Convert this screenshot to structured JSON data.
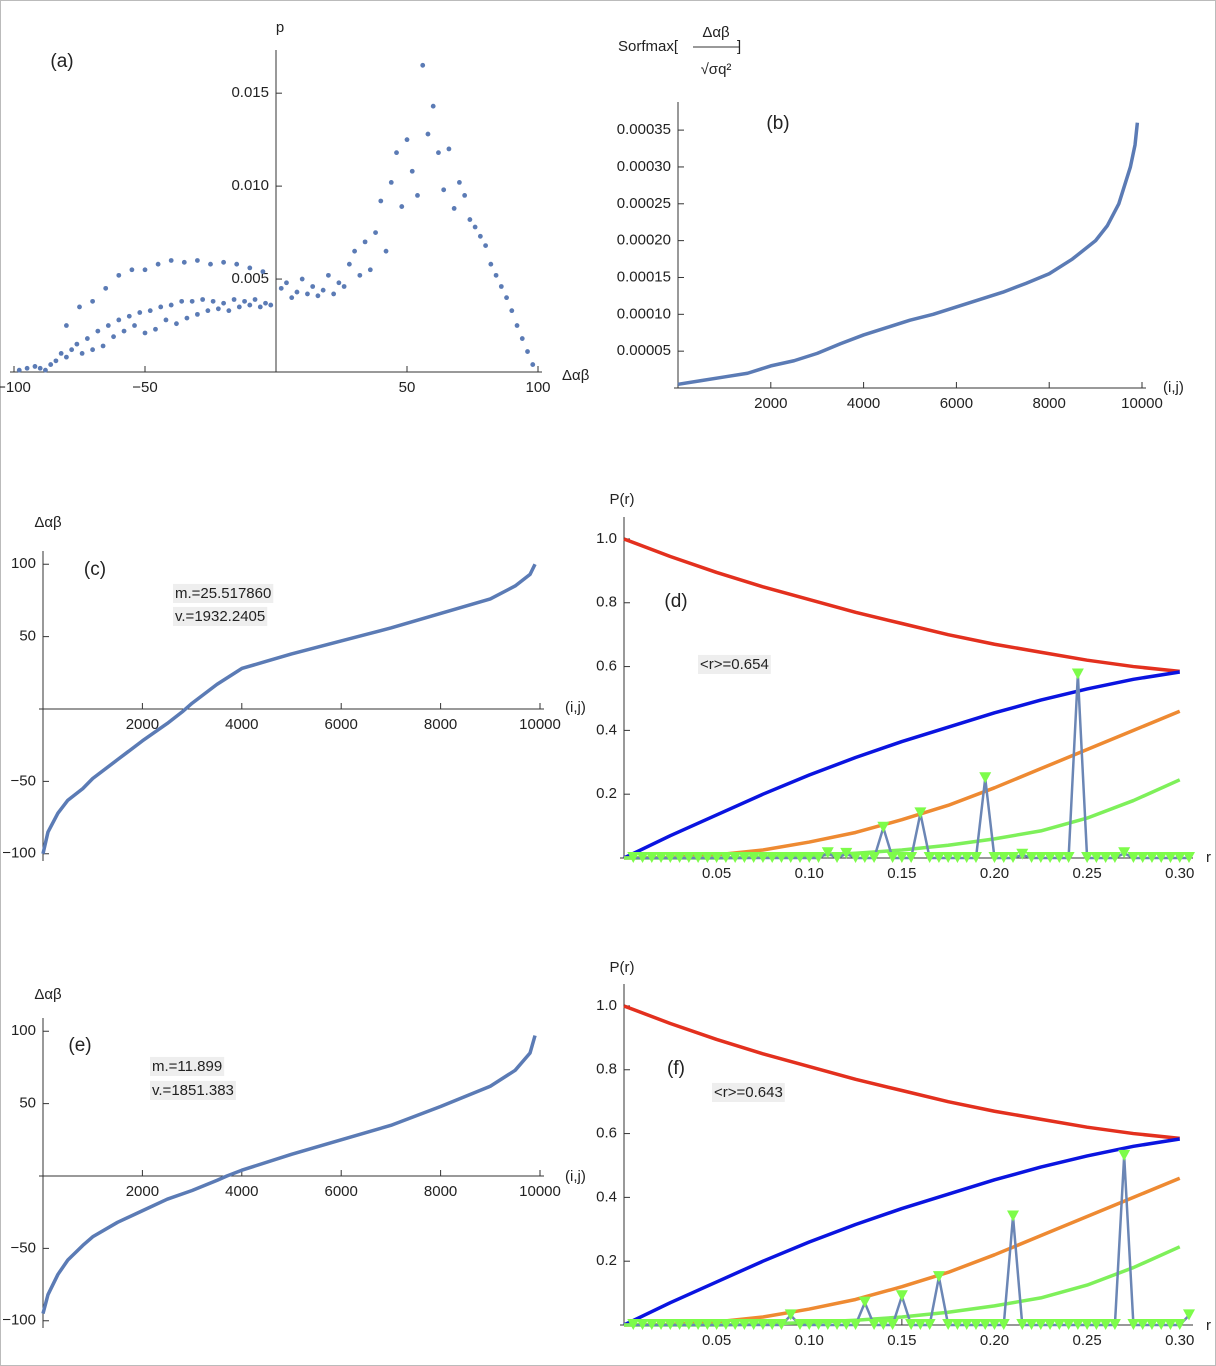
{
  "chart_data": [
    {
      "type": "scatter",
      "title": "(a)",
      "x_label": "Δαβ",
      "y_label": "p",
      "color": "#5b7bb5",
      "xlim": [
        -100,
        100
      ],
      "ylim": [
        0,
        0.017
      ],
      "xticks": [
        {
          "value": -100,
          "label": "−100"
        },
        {
          "value": -50,
          "label": "−50"
        },
        50,
        100
      ],
      "yticks": [
        0.005,
        {
          "value": 0.01,
          "label": "0.010"
        },
        0.015
      ],
      "x": [
        -98,
        -95,
        -92,
        -90,
        -88,
        -86,
        -84,
        -82,
        -80,
        -78,
        -76,
        -74,
        -72,
        -70,
        -68,
        -66,
        -64,
        -62,
        -60,
        -58,
        -56,
        -54,
        -52,
        -50,
        -48,
        -46,
        -44,
        -42,
        -40,
        -38,
        -36,
        -34,
        -32,
        -30,
        -28,
        -26,
        -24,
        -22,
        -20,
        -18,
        -16,
        -14,
        -12,
        -10,
        -8,
        -6,
        -4,
        -2,
        -80,
        -75,
        -70,
        -65,
        -60,
        -55,
        -50,
        -45,
        -40,
        -35,
        -30,
        -25,
        -20,
        -15,
        -10,
        -5,
        2,
        4,
        6,
        8,
        10,
        12,
        14,
        16,
        18,
        20,
        22,
        24,
        26,
        28,
        30,
        32,
        34,
        36,
        38,
        40,
        42,
        44,
        46,
        48,
        50,
        52,
        54,
        56,
        58,
        60,
        62,
        64,
        66,
        68,
        70,
        72,
        74,
        76,
        78,
        80,
        82,
        84,
        86,
        88,
        90,
        92,
        94,
        96,
        98
      ],
      "values": [
        0.0001,
        0.0002,
        0.0003,
        0.0002,
        0.0001,
        0.0004,
        0.0006,
        0.001,
        0.0008,
        0.0012,
        0.0015,
        0.001,
        0.0018,
        0.0012,
        0.0022,
        0.0014,
        0.0025,
        0.0019,
        0.0028,
        0.0022,
        0.003,
        0.0025,
        0.0032,
        0.0021,
        0.0033,
        0.0023,
        0.0035,
        0.0028,
        0.0036,
        0.0026,
        0.0038,
        0.0029,
        0.0038,
        0.0031,
        0.0039,
        0.0033,
        0.0038,
        0.0034,
        0.0037,
        0.0033,
        0.0039,
        0.0035,
        0.0038,
        0.0036,
        0.0039,
        0.0035,
        0.0037,
        0.0036,
        0.0025,
        0.0035,
        0.0038,
        0.0045,
        0.0052,
        0.0055,
        0.0055,
        0.0058,
        0.006,
        0.0059,
        0.006,
        0.0058,
        0.0059,
        0.0058,
        0.0056,
        0.0054,
        0.0045,
        0.0048,
        0.004,
        0.0043,
        0.005,
        0.0042,
        0.0046,
        0.0041,
        0.0044,
        0.0052,
        0.0042,
        0.0048,
        0.0046,
        0.0058,
        0.0065,
        0.0052,
        0.007,
        0.0055,
        0.0075,
        0.0092,
        0.0065,
        0.0102,
        0.0118,
        0.0089,
        0.0125,
        0.0108,
        0.0095,
        0.0165,
        0.0128,
        0.0143,
        0.0118,
        0.0098,
        0.012,
        0.0088,
        0.0102,
        0.0095,
        0.0082,
        0.0078,
        0.0073,
        0.0068,
        0.0058,
        0.0052,
        0.0046,
        0.004,
        0.0033,
        0.0025,
        0.0018,
        0.0011,
        0.0004
      ]
    },
    {
      "type": "line",
      "title": "(b)",
      "x_label": "(i,j)",
      "y_label": [
        "Sorfmax[",
        "Δαβ",
        "√σq²",
        "]"
      ],
      "color": "#5b7bb5",
      "xlim": [
        0,
        10000
      ],
      "ylim": [
        0,
        0.00038
      ],
      "xticks": [
        2000,
        4000,
        6000,
        8000,
        10000
      ],
      "yticks": [
        {
          "value": 5e-05,
          "label": "0.00005"
        },
        {
          "value": 0.0001,
          "label": "0.00010"
        },
        {
          "value": 0.00015,
          "label": "0.00015"
        },
        {
          "value": 0.0002,
          "label": "0.00020"
        },
        {
          "value": 0.00025,
          "label": "0.00025"
        },
        {
          "value": 0.0003,
          "label": "0.00030"
        },
        {
          "value": 0.00035,
          "label": "0.00035"
        }
      ],
      "x": [
        0,
        500,
        1000,
        1500,
        2000,
        2500,
        3000,
        3500,
        4000,
        4500,
        5000,
        5500,
        6000,
        6500,
        7000,
        7500,
        8000,
        8500,
        9000,
        9250,
        9500,
        9650,
        9750,
        9850,
        9900
      ],
      "values": [
        5e-06,
        1e-05,
        1.5e-05,
        2e-05,
        3e-05,
        3.7e-05,
        4.7e-05,
        6e-05,
        7.2e-05,
        8.2e-05,
        9.2e-05,
        0.0001,
        0.00011,
        0.00012,
        0.00013,
        0.000142,
        0.000155,
        0.000175,
        0.0002,
        0.00022,
        0.00025,
        0.00028,
        0.0003,
        0.00033,
        0.00036
      ]
    },
    {
      "type": "line",
      "title": "(c)",
      "x_label": "(i,j)",
      "y_label": "Δαβ",
      "color": "#5b7bb5",
      "annotations": [
        "m.=25.517860",
        "v.=1932.2405"
      ],
      "xlim": [
        0,
        10000
      ],
      "ylim": [
        -105,
        105
      ],
      "xticks": [
        2000,
        4000,
        6000,
        8000,
        10000
      ],
      "yticks": [
        {
          "value": -100,
          "label": "−100"
        },
        {
          "value": -50,
          "label": "−50"
        },
        50,
        100
      ],
      "x": [
        0,
        100,
        300,
        500,
        800,
        1000,
        1500,
        2000,
        2500,
        2800,
        3000,
        3500,
        4000,
        4500,
        5000,
        6000,
        7000,
        8000,
        9000,
        9500,
        9800,
        9900
      ],
      "values": [
        -100,
        -85,
        -72,
        -63,
        -55,
        -48,
        -35,
        -22,
        -10,
        -2,
        4,
        17,
        28,
        33,
        38,
        47,
        56,
        66,
        76,
        85,
        93,
        100
      ]
    },
    {
      "type": "line",
      "title": "(d)",
      "x_label": "r",
      "y_label": "P(r)",
      "annotations": [
        "<r>=0.654"
      ],
      "xlim": [
        0,
        0.305
      ],
      "ylim": [
        0,
        1.05
      ],
      "xticks": [
        0.05,
        {
          "value": 0.1,
          "label": "0.10"
        },
        0.15,
        {
          "value": 0.2,
          "label": "0.20"
        },
        0.25,
        {
          "value": 0.3,
          "label": "0.30"
        }
      ],
      "yticks": [
        0.2,
        0.4,
        0.6,
        0.8,
        {
          "value": 1,
          "label": "1.0"
        }
      ],
      "series": [
        {
          "color": "#e3301e",
          "x": [
            0,
            0.025,
            0.05,
            0.075,
            0.1,
            0.125,
            0.15,
            0.175,
            0.2,
            0.225,
            0.25,
            0.275,
            0.3
          ],
          "values": [
            1,
            0.945,
            0.895,
            0.85,
            0.81,
            0.77,
            0.735,
            0.7,
            0.67,
            0.645,
            0.62,
            0.6,
            0.585
          ]
        },
        {
          "color": "#0a14e0",
          "x": [
            0,
            0.025,
            0.05,
            0.075,
            0.1,
            0.125,
            0.15,
            0.175,
            0.2,
            0.225,
            0.25,
            0.275,
            0.3
          ],
          "values": [
            0,
            0.07,
            0.135,
            0.2,
            0.26,
            0.315,
            0.365,
            0.41,
            0.455,
            0.495,
            0.53,
            0.56,
            0.583
          ]
        },
        {
          "color": "#ee8a32",
          "x": [
            0,
            0.025,
            0.05,
            0.075,
            0.1,
            0.125,
            0.15,
            0.175,
            0.2,
            0.225,
            0.25,
            0.275,
            0.3
          ],
          "values": [
            0,
            0.002,
            0.01,
            0.025,
            0.05,
            0.08,
            0.12,
            0.165,
            0.22,
            0.28,
            0.34,
            0.4,
            0.46
          ]
        },
        {
          "color": "#7ef05a",
          "x": [
            0,
            0.025,
            0.05,
            0.075,
            0.1,
            0.125,
            0.15,
            0.175,
            0.2,
            0.225,
            0.25,
            0.275,
            0.3
          ],
          "values": [
            0,
            0,
            0,
            0.003,
            0.008,
            0.015,
            0.025,
            0.04,
            0.06,
            0.085,
            0.125,
            0.18,
            0.245
          ]
        },
        {
          "color": "#6b86b5",
          "marker": "triangle",
          "marker_color": "#7dfc4a",
          "x": [
            0.005,
            0.01,
            0.015,
            0.02,
            0.025,
            0.03,
            0.035,
            0.04,
            0.045,
            0.05,
            0.055,
            0.06,
            0.065,
            0.07,
            0.075,
            0.08,
            0.085,
            0.09,
            0.095,
            0.1,
            0.105,
            0.11,
            0.115,
            0.12,
            0.125,
            0.13,
            0.135,
            0.14,
            0.145,
            0.15,
            0.155,
            0.16,
            0.165,
            0.17,
            0.175,
            0.18,
            0.185,
            0.19,
            0.195,
            0.2,
            0.205,
            0.21,
            0.215,
            0.22,
            0.225,
            0.23,
            0.235,
            0.24,
            0.245,
            0.25,
            0.255,
            0.26,
            0.265,
            0.27,
            0.275,
            0.28,
            0.285,
            0.29,
            0.295,
            0.3,
            0.305
          ],
          "values": [
            0,
            0,
            0,
            0,
            0,
            0,
            0,
            0,
            0,
            0,
            0,
            0,
            0,
            0,
            0,
            0,
            0,
            0,
            0,
            0,
            0,
            0.015,
            0,
            0.013,
            0,
            0,
            0,
            0.095,
            0,
            0,
            0,
            0.14,
            0,
            0,
            0,
            0,
            0,
            0,
            0.25,
            0,
            0,
            0,
            0.01,
            0,
            0,
            0,
            0,
            0,
            0.575,
            0,
            0,
            0,
            0,
            0.015,
            0,
            0,
            0,
            0,
            0,
            0,
            0
          ]
        }
      ]
    },
    {
      "type": "line",
      "title": "(e)",
      "x_label": "(i,j)",
      "y_label": "Δαβ",
      "color": "#5b7bb5",
      "annotations": [
        "m.=11.899",
        "v.=1851.383"
      ],
      "xlim": [
        0,
        10000
      ],
      "ylim": [
        -105,
        105
      ],
      "xticks": [
        2000,
        4000,
        6000,
        8000,
        10000
      ],
      "yticks": [
        {
          "value": -100,
          "label": "−100"
        },
        {
          "value": -50,
          "label": "−50"
        },
        50,
        100
      ],
      "x": [
        0,
        100,
        300,
        500,
        800,
        1000,
        1500,
        2000,
        2500,
        3000,
        3500,
        3700,
        4000,
        5000,
        6000,
        7000,
        8000,
        9000,
        9500,
        9800,
        9900
      ],
      "values": [
        -95,
        -82,
        -68,
        -58,
        -48,
        -42,
        -32,
        -24,
        -16,
        -10,
        -3,
        0,
        4,
        15,
        25,
        35,
        48,
        62,
        73,
        85,
        97
      ]
    },
    {
      "type": "line",
      "title": "(f)",
      "x_label": "r",
      "y_label": "P(r)",
      "annotations": [
        "<r>=0.643"
      ],
      "xlim": [
        0,
        0.305
      ],
      "ylim": [
        0,
        1.05
      ],
      "xticks": [
        0.05,
        {
          "value": 0.1,
          "label": "0.10"
        },
        0.15,
        {
          "value": 0.2,
          "label": "0.20"
        },
        0.25,
        {
          "value": 0.3,
          "label": "0.30"
        }
      ],
      "yticks": [
        0.2,
        0.4,
        0.6,
        0.8,
        {
          "value": 1,
          "label": "1.0"
        }
      ],
      "series": [
        {
          "color": "#e3301e",
          "x": [
            0,
            0.025,
            0.05,
            0.075,
            0.1,
            0.125,
            0.15,
            0.175,
            0.2,
            0.225,
            0.25,
            0.275,
            0.3
          ],
          "values": [
            1,
            0.945,
            0.895,
            0.85,
            0.81,
            0.77,
            0.735,
            0.7,
            0.67,
            0.645,
            0.62,
            0.6,
            0.585
          ]
        },
        {
          "color": "#0a14e0",
          "x": [
            0,
            0.025,
            0.05,
            0.075,
            0.1,
            0.125,
            0.15,
            0.175,
            0.2,
            0.225,
            0.25,
            0.275,
            0.3
          ],
          "values": [
            0,
            0.07,
            0.135,
            0.2,
            0.26,
            0.315,
            0.365,
            0.41,
            0.455,
            0.495,
            0.53,
            0.56,
            0.583
          ]
        },
        {
          "color": "#ee8a32",
          "x": [
            0,
            0.025,
            0.05,
            0.075,
            0.1,
            0.125,
            0.15,
            0.175,
            0.2,
            0.225,
            0.25,
            0.275,
            0.3
          ],
          "values": [
            0,
            0.002,
            0.01,
            0.025,
            0.05,
            0.08,
            0.12,
            0.165,
            0.22,
            0.28,
            0.34,
            0.4,
            0.46
          ]
        },
        {
          "color": "#7ef05a",
          "x": [
            0,
            0.025,
            0.05,
            0.075,
            0.1,
            0.125,
            0.15,
            0.175,
            0.2,
            0.225,
            0.25,
            0.275,
            0.3
          ],
          "values": [
            0,
            0,
            0,
            0.003,
            0.008,
            0.015,
            0.025,
            0.04,
            0.06,
            0.085,
            0.125,
            0.18,
            0.245
          ]
        },
        {
          "color": "#6b86b5",
          "marker": "triangle",
          "marker_color": "#7dfc4a",
          "x": [
            0.005,
            0.01,
            0.015,
            0.02,
            0.025,
            0.03,
            0.035,
            0.04,
            0.045,
            0.05,
            0.055,
            0.06,
            0.065,
            0.07,
            0.075,
            0.08,
            0.085,
            0.09,
            0.095,
            0.1,
            0.105,
            0.11,
            0.115,
            0.12,
            0.125,
            0.13,
            0.135,
            0.14,
            0.145,
            0.15,
            0.155,
            0.16,
            0.165,
            0.17,
            0.175,
            0.18,
            0.185,
            0.19,
            0.195,
            0.2,
            0.205,
            0.21,
            0.215,
            0.22,
            0.225,
            0.23,
            0.235,
            0.24,
            0.245,
            0.25,
            0.255,
            0.26,
            0.265,
            0.27,
            0.275,
            0.28,
            0.285,
            0.29,
            0.295,
            0.3,
            0.305
          ],
          "values": [
            0,
            0,
            0,
            0,
            0,
            0,
            0,
            0,
            0,
            0,
            0,
            0,
            0,
            0,
            0,
            0,
            0,
            0.03,
            0,
            0,
            0,
            0,
            0,
            0,
            0,
            0.07,
            0,
            0,
            0,
            0.09,
            0,
            0,
            0,
            0.15,
            0,
            0,
            0,
            0,
            0,
            0,
            0,
            0.34,
            0,
            0,
            0,
            0,
            0,
            0,
            0,
            0,
            0,
            0,
            0,
            0.53,
            0,
            0,
            0,
            0,
            0,
            0,
            0.03
          ]
        }
      ]
    }
  ]
}
